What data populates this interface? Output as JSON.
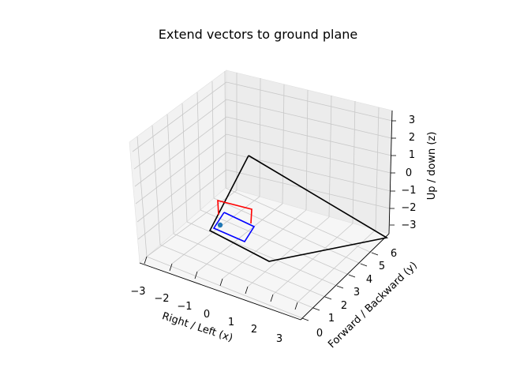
{
  "chart_data": {
    "type": "3d-line",
    "title": "Extend vectors to ground plane",
    "xlabel": "Right / Left (x)",
    "ylabel": "Forward / Backward (y)",
    "zlabel": "Up / down (z)",
    "xlim": [
      -3.5,
      3.5
    ],
    "ylim": [
      -0.5,
      6.5
    ],
    "zlim": [
      -3.5,
      3.5
    ],
    "x_ticks": [
      "−3",
      "−2",
      "−1",
      "0",
      "1",
      "2",
      "3"
    ],
    "y_ticks": [
      "0",
      "1",
      "2",
      "3",
      "4",
      "5",
      "6"
    ],
    "z_ticks": [
      "3",
      "2",
      "1",
      "0",
      "−1",
      "−2",
      "−3"
    ],
    "grid": true,
    "series": [
      {
        "color": "#ff0000",
        "shape": "open-rectangle"
      },
      {
        "color": "#0000ff",
        "shape": "closed-rectangle"
      },
      {
        "color": "#000000",
        "shape": "closed-quadrilateral"
      },
      {
        "color": "#1f77b4",
        "shape": "point"
      }
    ]
  }
}
